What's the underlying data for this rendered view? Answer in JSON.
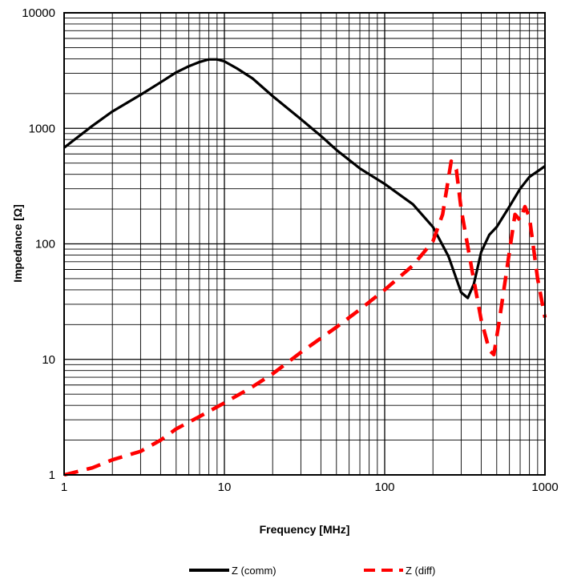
{
  "chart_data": {
    "type": "line",
    "title": "",
    "xlabel": "Frequency  [MHz]",
    "ylabel": "Impedance [Ω]",
    "xscale": "log",
    "yscale": "log",
    "xlim": [
      1,
      1000
    ],
    "ylim": [
      1,
      10000
    ],
    "grid": true,
    "legend_position": "bottom",
    "x_ticks": [
      "1",
      "10",
      "100",
      "1000"
    ],
    "y_ticks": [
      "1",
      "10",
      "100",
      "1000",
      "10000"
    ],
    "series": [
      {
        "name": "Z (comm)",
        "color": "#000000",
        "style": "solid",
        "x": [
          1,
          1.5,
          2,
          3,
          4,
          5,
          6,
          7,
          8,
          9,
          10,
          12,
          15,
          20,
          30,
          40,
          50,
          70,
          100,
          150,
          200,
          250,
          300,
          330,
          360,
          400,
          450,
          500,
          600,
          700,
          800,
          1000
        ],
        "y": [
          680,
          1050,
          1400,
          1950,
          2500,
          3050,
          3450,
          3750,
          3950,
          3950,
          3800,
          3300,
          2700,
          1900,
          1200,
          860,
          650,
          450,
          330,
          220,
          140,
          78,
          38,
          34,
          45,
          85,
          120,
          140,
          210,
          300,
          380,
          470
        ]
      },
      {
        "name": "Z (diff)",
        "color": "#ff0000",
        "style": "dashed",
        "x": [
          1,
          1.5,
          2,
          3,
          4,
          5,
          7,
          10,
          15,
          20,
          30,
          50,
          70,
          100,
          150,
          200,
          230,
          260,
          280,
          300,
          350,
          400,
          450,
          480,
          520,
          600,
          650,
          700,
          750,
          800,
          900,
          1000
        ],
        "y": [
          1.0,
          1.15,
          1.35,
          1.6,
          2.0,
          2.5,
          3.2,
          4.2,
          5.8,
          7.5,
          11.5,
          19,
          27,
          40,
          65,
          105,
          180,
          520,
          440,
          200,
          60,
          22,
          12,
          11,
          22,
          85,
          180,
          160,
          210,
          170,
          50,
          23
        ]
      }
    ]
  }
}
